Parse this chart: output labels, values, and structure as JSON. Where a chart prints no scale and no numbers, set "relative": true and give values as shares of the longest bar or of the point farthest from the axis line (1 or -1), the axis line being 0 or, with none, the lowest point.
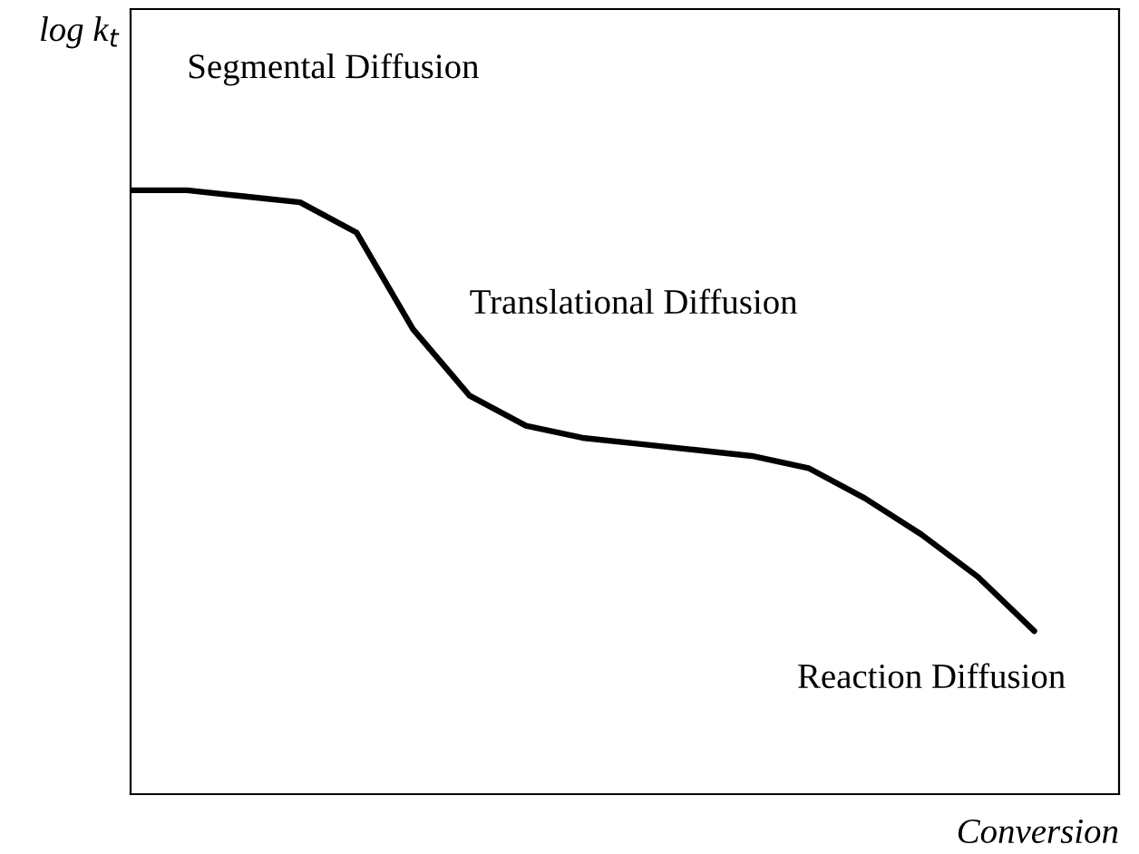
{
  "chart_data": {
    "type": "line",
    "relative": true,
    "xlabel": "Conversion",
    "ylabel": "log k$_{t}$",
    "categories": [
      null,
      null,
      null,
      null,
      null,
      null,
      null,
      null,
      null,
      null,
      null,
      null,
      null,
      null,
      null,
      null,
      null
    ],
    "series": [
      {
        "color": "#000000",
        "values": [
          1,
          1.0,
          0.99,
          0.98,
          0.93,
          0.77,
          0.66,
          0.61,
          0.59,
          0.58,
          0.57,
          0.56,
          0.54,
          0.49,
          0.43,
          0.36,
          0.27
        ]
      }
    ],
    "annotations": [
      "Segmental Diffusion",
      "Translational Diffusion",
      "Reaction Diffusion"
    ],
    "line_style": "solid",
    "marker": "none",
    "grid": false,
    "legend": false
  }
}
